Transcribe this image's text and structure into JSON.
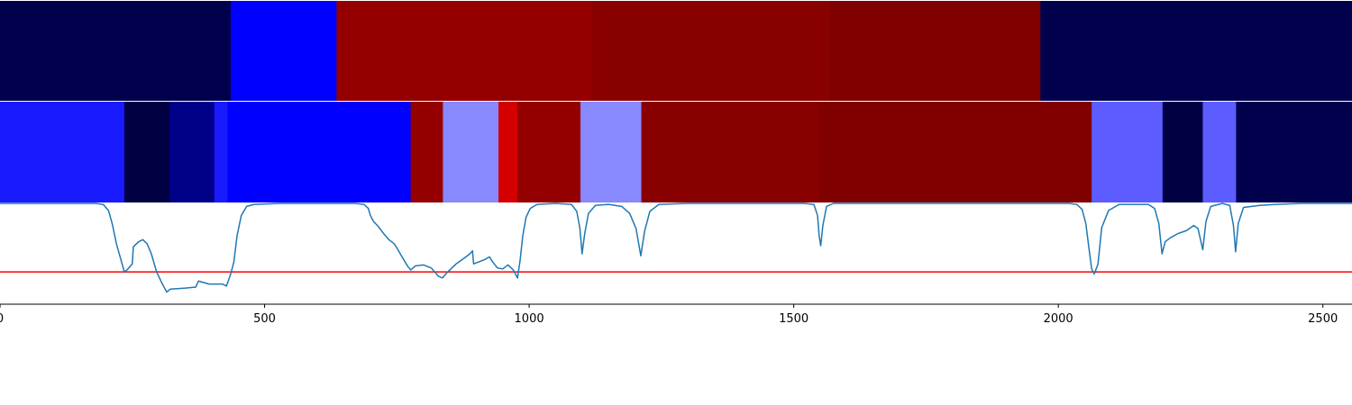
{
  "chart_data": {
    "type": "heatmap",
    "title": "",
    "xlabel": "",
    "ylabel": "",
    "xlim": [
      0,
      2555
    ],
    "x_ticks": [
      0,
      500,
      1000,
      1500,
      2000,
      2500
    ],
    "grid": false,
    "legend": "none",
    "rows": [
      {
        "segments": [
          {
            "x0": 0,
            "x1": 436,
            "color": "#00004d"
          },
          {
            "x0": 436,
            "x1": 636,
            "color": "#0000ff"
          },
          {
            "x0": 636,
            "x1": 1119,
            "color": "#940000"
          },
          {
            "x0": 1119,
            "x1": 1568,
            "color": "#880000"
          },
          {
            "x0": 1568,
            "x1": 1966,
            "color": "#800000"
          },
          {
            "x0": 1966,
            "x1": 2555,
            "color": "#00004d"
          }
        ]
      },
      {
        "segments": [
          {
            "x0": 0,
            "x1": 235,
            "color": "#1a1aff"
          },
          {
            "x0": 235,
            "x1": 320,
            "color": "#000042"
          },
          {
            "x0": 320,
            "x1": 405,
            "color": "#000089"
          },
          {
            "x0": 405,
            "x1": 430,
            "color": "#1a1aff"
          },
          {
            "x0": 430,
            "x1": 776,
            "color": "#0000ff"
          },
          {
            "x0": 776,
            "x1": 837,
            "color": "#940000"
          },
          {
            "x0": 837,
            "x1": 942,
            "color": "#8888ff"
          },
          {
            "x0": 942,
            "x1": 978,
            "color": "#d40000"
          },
          {
            "x0": 978,
            "x1": 1097,
            "color": "#940000"
          },
          {
            "x0": 1097,
            "x1": 1212,
            "color": "#8888ff"
          },
          {
            "x0": 1212,
            "x1": 1546,
            "color": "#880000"
          },
          {
            "x0": 1546,
            "x1": 2063,
            "color": "#800000"
          },
          {
            "x0": 2063,
            "x1": 2197,
            "color": "#5c5cff"
          },
          {
            "x0": 2197,
            "x1": 2273,
            "color": "#000042"
          },
          {
            "x0": 2273,
            "x1": 2336,
            "color": "#5c5cff"
          },
          {
            "x0": 2336,
            "x1": 2555,
            "color": "#00004d"
          }
        ]
      }
    ],
    "line": {
      "color": "#1f77b4",
      "ylim": [
        0,
        1
      ],
      "points": [
        [
          0,
          1.0
        ],
        [
          100,
          1.0
        ],
        [
          180,
          1.0
        ],
        [
          195,
          0.99
        ],
        [
          205,
          0.93
        ],
        [
          212,
          0.8
        ],
        [
          220,
          0.6
        ],
        [
          228,
          0.45
        ],
        [
          235,
          0.32
        ],
        [
          240,
          0.34
        ],
        [
          250,
          0.4
        ],
        [
          252,
          0.57
        ],
        [
          262,
          0.62
        ],
        [
          270,
          0.64
        ],
        [
          278,
          0.6
        ],
        [
          286,
          0.5
        ],
        [
          296,
          0.32
        ],
        [
          305,
          0.22
        ],
        [
          315,
          0.12
        ],
        [
          322,
          0.15
        ],
        [
          350,
          0.16
        ],
        [
          370,
          0.17
        ],
        [
          375,
          0.23
        ],
        [
          395,
          0.2
        ],
        [
          420,
          0.2
        ],
        [
          428,
          0.18
        ],
        [
          436,
          0.3
        ],
        [
          442,
          0.42
        ],
        [
          448,
          0.68
        ],
        [
          456,
          0.88
        ],
        [
          466,
          0.97
        ],
        [
          480,
          0.99
        ],
        [
          530,
          1.0
        ],
        [
          670,
          1.0
        ],
        [
          688,
          0.99
        ],
        [
          696,
          0.95
        ],
        [
          700,
          0.88
        ],
        [
          706,
          0.82
        ],
        [
          715,
          0.77
        ],
        [
          725,
          0.7
        ],
        [
          735,
          0.64
        ],
        [
          745,
          0.6
        ],
        [
          752,
          0.54
        ],
        [
          762,
          0.45
        ],
        [
          770,
          0.38
        ],
        [
          776,
          0.34
        ],
        [
          785,
          0.38
        ],
        [
          800,
          0.39
        ],
        [
          815,
          0.36
        ],
        [
          828,
          0.28
        ],
        [
          836,
          0.26
        ],
        [
          846,
          0.32
        ],
        [
          862,
          0.4
        ],
        [
          878,
          0.46
        ],
        [
          888,
          0.5
        ],
        [
          893,
          0.53
        ],
        [
          895,
          0.4
        ],
        [
          905,
          0.42
        ],
        [
          915,
          0.44
        ],
        [
          925,
          0.47
        ],
        [
          931,
          0.42
        ],
        [
          940,
          0.36
        ],
        [
          950,
          0.35
        ],
        [
          960,
          0.39
        ],
        [
          970,
          0.34
        ],
        [
          978,
          0.26
        ],
        [
          983,
          0.44
        ],
        [
          988,
          0.68
        ],
        [
          994,
          0.86
        ],
        [
          1002,
          0.95
        ],
        [
          1015,
          0.99
        ],
        [
          1050,
          1.0
        ],
        [
          1080,
          0.99
        ],
        [
          1090,
          0.92
        ],
        [
          1096,
          0.75
        ],
        [
          1100,
          0.5
        ],
        [
          1105,
          0.7
        ],
        [
          1112,
          0.9
        ],
        [
          1125,
          0.98
        ],
        [
          1150,
          0.99
        ],
        [
          1175,
          0.97
        ],
        [
          1190,
          0.9
        ],
        [
          1202,
          0.75
        ],
        [
          1211,
          0.48
        ],
        [
          1218,
          0.72
        ],
        [
          1228,
          0.92
        ],
        [
          1245,
          0.99
        ],
        [
          1300,
          1.0
        ],
        [
          1520,
          1.0
        ],
        [
          1538,
          0.99
        ],
        [
          1545,
          0.88
        ],
        [
          1548,
          0.68
        ],
        [
          1551,
          0.58
        ],
        [
          1555,
          0.78
        ],
        [
          1562,
          0.97
        ],
        [
          1575,
          1.0
        ],
        [
          1900,
          1.0
        ],
        [
          2020,
          1.0
        ],
        [
          2035,
          0.99
        ],
        [
          2045,
          0.94
        ],
        [
          2052,
          0.8
        ],
        [
          2058,
          0.55
        ],
        [
          2063,
          0.35
        ],
        [
          2068,
          0.3
        ],
        [
          2075,
          0.4
        ],
        [
          2082,
          0.76
        ],
        [
          2095,
          0.93
        ],
        [
          2115,
          0.99
        ],
        [
          2170,
          0.99
        ],
        [
          2182,
          0.95
        ],
        [
          2190,
          0.8
        ],
        [
          2196,
          0.5
        ],
        [
          2202,
          0.62
        ],
        [
          2212,
          0.66
        ],
        [
          2226,
          0.7
        ],
        [
          2242,
          0.73
        ],
        [
          2256,
          0.78
        ],
        [
          2264,
          0.75
        ],
        [
          2273,
          0.54
        ],
        [
          2279,
          0.82
        ],
        [
          2288,
          0.97
        ],
        [
          2310,
          1.0
        ],
        [
          2324,
          0.98
        ],
        [
          2331,
          0.78
        ],
        [
          2335,
          0.52
        ],
        [
          2340,
          0.8
        ],
        [
          2350,
          0.96
        ],
        [
          2380,
          0.98
        ],
        [
          2410,
          0.99
        ],
        [
          2460,
          1.0
        ],
        [
          2555,
          1.0
        ]
      ]
    },
    "threshold": {
      "y": 0.32,
      "color": "#ff0000"
    }
  }
}
